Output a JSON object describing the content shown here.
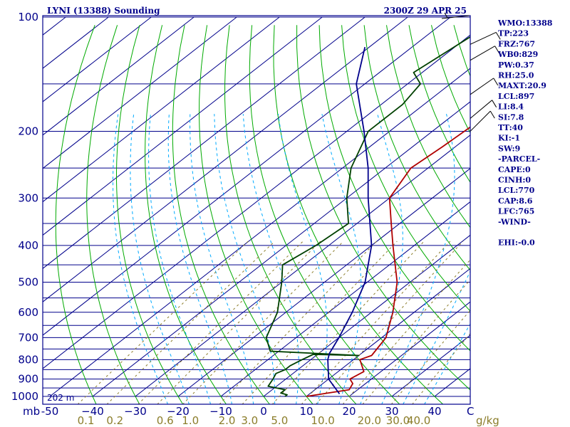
{
  "chart_data": {
    "type": "line",
    "title": "LYNI (13388) Sounding",
    "valid_time": "2300Z 29 APR 25",
    "pressure_unit": "mb",
    "mixing_ratio_unit": "g/kg",
    "pressure_levels": [
      100,
      200,
      300,
      400,
      500,
      600,
      700,
      800,
      900,
      1000
    ],
    "pressure_labels": [
      "100",
      "200",
      "300",
      "400",
      "500",
      "600",
      "700",
      "800",
      "900",
      "1000"
    ],
    "temperature_ticks": [
      -50,
      -40,
      -30,
      -20,
      -10,
      0,
      10,
      20,
      30,
      40
    ],
    "temperature_labels": [
      "-50",
      "−40",
      "−30",
      "−20",
      "−10",
      "0",
      "10",
      "20",
      "30",
      "40"
    ],
    "temperature_end_label": "C",
    "mixing_ratio_labels": [
      "0.1",
      "0.2",
      "0.6",
      "1.0",
      "2.0",
      "3.0",
      "5.0",
      "10.0",
      "20.0",
      "30.0",
      "40.0"
    ],
    "elevation_label": "202 m",
    "series": [
      {
        "name": "Temperature",
        "color": "#b00000",
        "points": [
          [
            1000,
            10
          ],
          [
            960,
            18
          ],
          [
            925,
            17
          ],
          [
            900,
            15
          ],
          [
            860,
            16
          ],
          [
            800,
            11.5
          ],
          [
            780,
            13
          ],
          [
            700,
            11
          ],
          [
            600,
            5
          ],
          [
            500,
            -3
          ],
          [
            400,
            -15
          ],
          [
            350,
            -22
          ],
          [
            300,
            -30
          ],
          [
            250,
            -34
          ],
          [
            220,
            -33
          ],
          [
            180,
            -32
          ],
          [
            150,
            -30
          ],
          [
            140,
            -25
          ],
          [
            130,
            -23
          ],
          [
            100,
            -22
          ]
        ]
      },
      {
        "name": "Dewpoint",
        "color": "#004000",
        "points": [
          [
            1000,
            5
          ],
          [
            990,
            5
          ],
          [
            980,
            3
          ],
          [
            960,
            3
          ],
          [
            940,
            -2
          ],
          [
            900,
            -3
          ],
          [
            870,
            -4
          ],
          [
            850,
            -3
          ],
          [
            830,
            -3
          ],
          [
            800,
            -2
          ],
          [
            775,
            -1
          ],
          [
            780,
            10
          ],
          [
            760,
            -12
          ],
          [
            700,
            -17
          ],
          [
            600,
            -22
          ],
          [
            500,
            -30
          ],
          [
            450,
            -35
          ],
          [
            400,
            -33
          ],
          [
            350,
            -32
          ],
          [
            300,
            -40
          ],
          [
            250,
            -48
          ],
          [
            200,
            -55
          ],
          [
            170,
            -55
          ],
          [
            150,
            -57
          ],
          [
            140,
            -62
          ],
          [
            100,
            -58
          ]
        ]
      },
      {
        "name": "Parcel",
        "color": "#00008b",
        "points": [
          [
            985,
            17
          ],
          [
            900,
            10
          ],
          [
            800,
            4
          ],
          [
            770,
            2.5
          ],
          [
            700,
            0
          ],
          [
            600,
            -4.5
          ],
          [
            500,
            -10.5
          ],
          [
            400,
            -20
          ],
          [
            300,
            -35
          ],
          [
            250,
            -44
          ],
          [
            200,
            -56
          ],
          [
            150,
            -72
          ],
          [
            120,
            -81
          ]
        ]
      }
    ],
    "indices": [
      "WMO:13388",
      "TP:223",
      "FRZ:767",
      "WB0:829",
      "PW:0.37",
      "RH:25.0",
      "MAXT:20.9",
      "LCL:897",
      "LI:8.4",
      "SI:7.8",
      "TT:40",
      "KI:-1",
      "SW:9",
      "-PARCEL-",
      "CAPE:0",
      "CINH:0",
      "LCL:770",
      "CAP:8.6",
      "LFC:765",
      "-WIND-",
      "",
      "EHI:-0.0"
    ],
    "colors": {
      "frame": "#00008b",
      "isobar": "#00008b",
      "isotherm": "#00008b",
      "dry_adiabat": "#00aa00",
      "moist_adiabat": "#00aaff",
      "mixing_ratio": "#8b7d2a"
    }
  }
}
